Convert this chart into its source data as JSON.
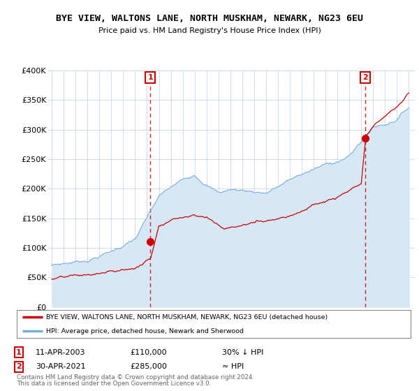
{
  "title": "BYE VIEW, WALTONS LANE, NORTH MUSKHAM, NEWARK, NG23 6EU",
  "subtitle": "Price paid vs. HM Land Registry's House Price Index (HPI)",
  "ylabel_values": [
    "£0",
    "£50K",
    "£100K",
    "£150K",
    "£200K",
    "£250K",
    "£300K",
    "£350K",
    "£400K"
  ],
  "ylim": [
    0,
    400000
  ],
  "yticks": [
    0,
    50000,
    100000,
    150000,
    200000,
    250000,
    300000,
    350000,
    400000
  ],
  "x_start_year": 1995,
  "x_end_year": 2025,
  "hpi_color": "#7aaddc",
  "hpi_fill_color": "#d6e8f5",
  "price_color": "#cc0000",
  "dashed_line_color": "#cc0000",
  "marker1_date": "11-APR-2003",
  "marker1_price": 110000,
  "marker1_label": "30% ↓ HPI",
  "marker1_x": 2003.27,
  "marker2_date": "30-APR-2021",
  "marker2_price": 285000,
  "marker2_label": "≈ HPI",
  "marker2_x": 2021.33,
  "legend_line1": "BYE VIEW, WALTONS LANE, NORTH MUSKHAM, NEWARK, NG23 6EU (detached house)",
  "legend_line2": "HPI: Average price, detached house, Newark and Sherwood",
  "footer1": "Contains HM Land Registry data © Crown copyright and database right 2024.",
  "footer2": "This data is licensed under the Open Government Licence v3.0.",
  "background_color": "#ffffff",
  "plot_bg_color": "#ffffff",
  "grid_color": "#c8d8e8"
}
